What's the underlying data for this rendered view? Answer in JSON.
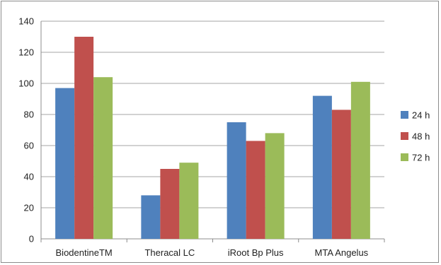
{
  "chart_data": {
    "type": "bar",
    "categories": [
      "BiodentineTM",
      "Theracal LC",
      "iRoot Bp Plus",
      "MTA Angelus"
    ],
    "series": [
      {
        "name": "24 h",
        "values": [
          97,
          28,
          75,
          92
        ],
        "color": "#4f81bd"
      },
      {
        "name": "48 h",
        "values": [
          130,
          45,
          63,
          83
        ],
        "color": "#c0504d"
      },
      {
        "name": "72 h",
        "values": [
          104,
          49,
          68,
          101
        ],
        "color": "#9bbb59"
      }
    ],
    "title": "",
    "xlabel": "",
    "ylabel": "",
    "ylim": [
      0,
      140
    ],
    "yticks": [
      "0",
      "20",
      "40",
      "60",
      "80",
      "100",
      "120",
      "140"
    ],
    "grid": true,
    "legend_position": "right"
  }
}
